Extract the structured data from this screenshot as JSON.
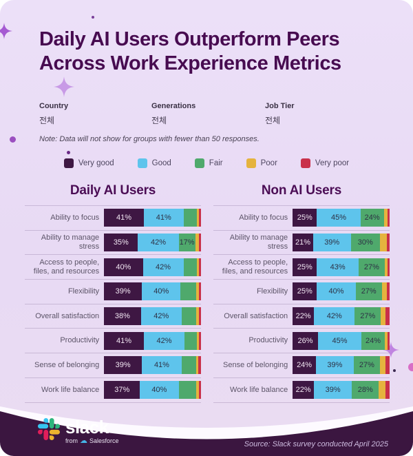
{
  "header": {
    "title_line1": "Daily AI Users Outperform Peers",
    "title_line2": "Across Work Experience Metrics"
  },
  "filters": [
    {
      "label": "Country",
      "value": "전체"
    },
    {
      "label": "Generations",
      "value": "전체"
    },
    {
      "label": "Job Tier",
      "value": "전체"
    }
  ],
  "note": "Note: Data will not show for groups with fewer than 50 responses.",
  "legend": [
    {
      "label": "Very good",
      "color": "#3e1743"
    },
    {
      "label": "Good",
      "color": "#5ec4ec"
    },
    {
      "label": "Fair",
      "color": "#4fa96c"
    },
    {
      "label": "Poor",
      "color": "#e5b33e"
    },
    {
      "label": "Very poor",
      "color": "#c9304a"
    }
  ],
  "colors": {
    "background": "#e8daf4",
    "title_text": "#470b50",
    "footer_background": "#3b1640",
    "very_good": "#3e1743",
    "good": "#5ec4ec",
    "fair": "#4fa96c",
    "poor": "#e5b33e",
    "very_poor": "#c9304a"
  },
  "chart_data": [
    {
      "type": "bar",
      "stacked": true,
      "direction": "horizontal",
      "title": "Daily AI Users",
      "xlim": [
        0,
        100
      ],
      "categories": [
        "Ability to focus",
        "Ability to manage stress",
        "Access to people, files, and resources",
        "Flexibility",
        "Overall satisfaction",
        "Productivity",
        "Sense of belonging",
        "Work life balance"
      ],
      "series": [
        {
          "name": "Very good",
          "color": "#3e1743",
          "values": [
            41,
            35,
            40,
            39,
            38,
            41,
            39,
            37
          ]
        },
        {
          "name": "Good",
          "color": "#5ec4ec",
          "values": [
            41,
            42,
            42,
            40,
            42,
            42,
            41,
            40
          ]
        },
        {
          "name": "Fair",
          "color": "#4fa96c",
          "values": [
            14,
            17,
            14,
            16,
            15,
            13,
            15,
            18
          ]
        },
        {
          "name": "Poor",
          "color": "#e5b33e",
          "values": [
            2,
            4,
            2,
            3,
            3,
            2,
            2,
            3
          ]
        },
        {
          "name": "Very poor",
          "color": "#c9304a",
          "values": [
            2,
            2,
            2,
            2,
            2,
            2,
            3,
            2
          ]
        }
      ],
      "visible_labels": [
        [
          "41%",
          "41%",
          "",
          "",
          ""
        ],
        [
          "35%",
          "42%",
          "17%",
          "",
          ""
        ],
        [
          "40%",
          "42%",
          "",
          "",
          ""
        ],
        [
          "39%",
          "40%",
          "",
          "",
          ""
        ],
        [
          "38%",
          "42%",
          "",
          "",
          ""
        ],
        [
          "41%",
          "42%",
          "",
          "",
          ""
        ],
        [
          "39%",
          "41%",
          "",
          "",
          ""
        ],
        [
          "37%",
          "40%",
          "",
          "",
          ""
        ]
      ]
    },
    {
      "type": "bar",
      "stacked": true,
      "direction": "horizontal",
      "title": "Non AI Users",
      "xlim": [
        0,
        100
      ],
      "categories": [
        "Ability to focus",
        "Ability to manage stress",
        "Access to people, files, and resources",
        "Flexibility",
        "Overall satisfaction",
        "Productivity",
        "Sense of belonging",
        "Work life balance"
      ],
      "series": [
        {
          "name": "Very good",
          "color": "#3e1743",
          "values": [
            25,
            21,
            25,
            25,
            22,
            26,
            24,
            22
          ]
        },
        {
          "name": "Good",
          "color": "#5ec4ec",
          "values": [
            45,
            39,
            43,
            40,
            42,
            45,
            39,
            39
          ]
        },
        {
          "name": "Fair",
          "color": "#4fa96c",
          "values": [
            24,
            30,
            27,
            27,
            27,
            24,
            27,
            28
          ]
        },
        {
          "name": "Poor",
          "color": "#e5b33e",
          "values": [
            4,
            7,
            3,
            5,
            5,
            3,
            6,
            7
          ]
        },
        {
          "name": "Very poor",
          "color": "#c9304a",
          "values": [
            2,
            3,
            2,
            3,
            4,
            2,
            4,
            4
          ]
        }
      ],
      "visible_labels": [
        [
          "25%",
          "45%",
          "24%",
          "",
          ""
        ],
        [
          "21%",
          "39%",
          "30%",
          "",
          ""
        ],
        [
          "25%",
          "43%",
          "27%",
          "",
          ""
        ],
        [
          "25%",
          "40%",
          "27%",
          "",
          ""
        ],
        [
          "22%",
          "42%",
          "27%",
          "",
          ""
        ],
        [
          "26%",
          "45%",
          "24%",
          "",
          ""
        ],
        [
          "24%",
          "39%",
          "27%",
          "",
          ""
        ],
        [
          "22%",
          "39%",
          "28%",
          "",
          ""
        ]
      ]
    }
  ],
  "footer": {
    "logo": {
      "wordmark": "slack",
      "subtext_from": "from",
      "subtext_brand": "Salesforce"
    },
    "source": "Source: Slack survey conducted April 2025"
  }
}
